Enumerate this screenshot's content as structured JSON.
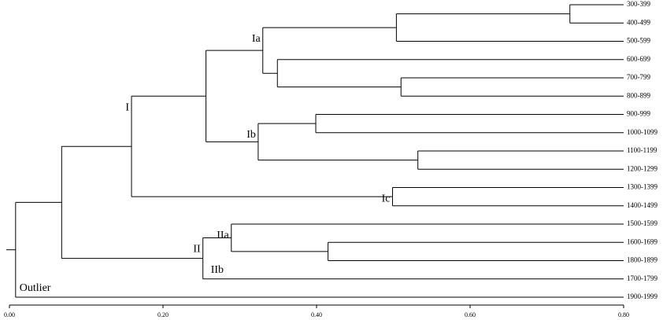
{
  "chart_data": {
    "type": "dendrogram",
    "xlim": [
      0,
      0.8
    ],
    "xticks": [
      {
        "value": 0,
        "label": "0.00"
      },
      {
        "value": 0.2,
        "label": "0.20"
      },
      {
        "value": 0.4,
        "label": "0.40"
      },
      {
        "value": 0.6,
        "label": "0.60"
      },
      {
        "value": 0.8,
        "label": "0.80"
      }
    ],
    "leaves": [
      {
        "name": "300-399"
      },
      {
        "name": "400-499"
      },
      {
        "name": "500-599"
      },
      {
        "name": "600-699"
      },
      {
        "name": "700-799"
      },
      {
        "name": "800-899"
      },
      {
        "name": "900-999"
      },
      {
        "name": "1000-1099"
      },
      {
        "name": "1100-1199"
      },
      {
        "name": "1200-1299"
      },
      {
        "name": "1300-1399"
      },
      {
        "name": "1400-1499"
      },
      {
        "name": "1500-1599"
      },
      {
        "name": "1600-1699"
      },
      {
        "name": "1800-1899"
      },
      {
        "name": "1700-1799",
        "branch_label": "IIb"
      },
      {
        "name": "1900-1999",
        "branch_label": "Outlier"
      }
    ],
    "nodes": [
      {
        "x": 0.73,
        "children": [
          "leaves.0",
          "leaves.1"
        ]
      },
      {
        "x": 0.504,
        "children": [
          "nodes.0",
          "leaves.2"
        ]
      },
      {
        "x": 0.51,
        "children": [
          "leaves.4",
          "leaves.5"
        ]
      },
      {
        "x": 0.349,
        "children": [
          "leaves.3",
          "nodes.2"
        ]
      },
      {
        "x": 0.33,
        "children": [
          "nodes.1",
          "nodes.3"
        ],
        "label": "Ia"
      },
      {
        "x": 0.399,
        "children": [
          "leaves.6",
          "leaves.7"
        ]
      },
      {
        "x": 0.532,
        "children": [
          "leaves.8",
          "leaves.9"
        ]
      },
      {
        "x": 0.324,
        "children": [
          "nodes.5",
          "nodes.6"
        ],
        "label": "Ib"
      },
      {
        "x": 0.256,
        "children": [
          "nodes.4",
          "nodes.7"
        ]
      },
      {
        "x": 0.499,
        "children": [
          "leaves.10",
          "leaves.11"
        ],
        "label": "Ic"
      },
      {
        "x": 0.159,
        "children": [
          "nodes.8",
          "nodes.9"
        ],
        "label": "I"
      },
      {
        "x": 0.415,
        "children": [
          "leaves.13",
          "leaves.14"
        ]
      },
      {
        "x": 0.289,
        "children": [
          "leaves.12",
          "nodes.11"
        ],
        "label": "IIa"
      },
      {
        "x": 0.252,
        "children": [
          "nodes.12",
          "leaves.15"
        ],
        "label": "II"
      },
      {
        "x": 0.068,
        "children": [
          "nodes.10",
          "nodes.13"
        ]
      },
      {
        "x": 0.008,
        "children": [
          "nodes.14",
          "leaves.16"
        ]
      }
    ]
  }
}
